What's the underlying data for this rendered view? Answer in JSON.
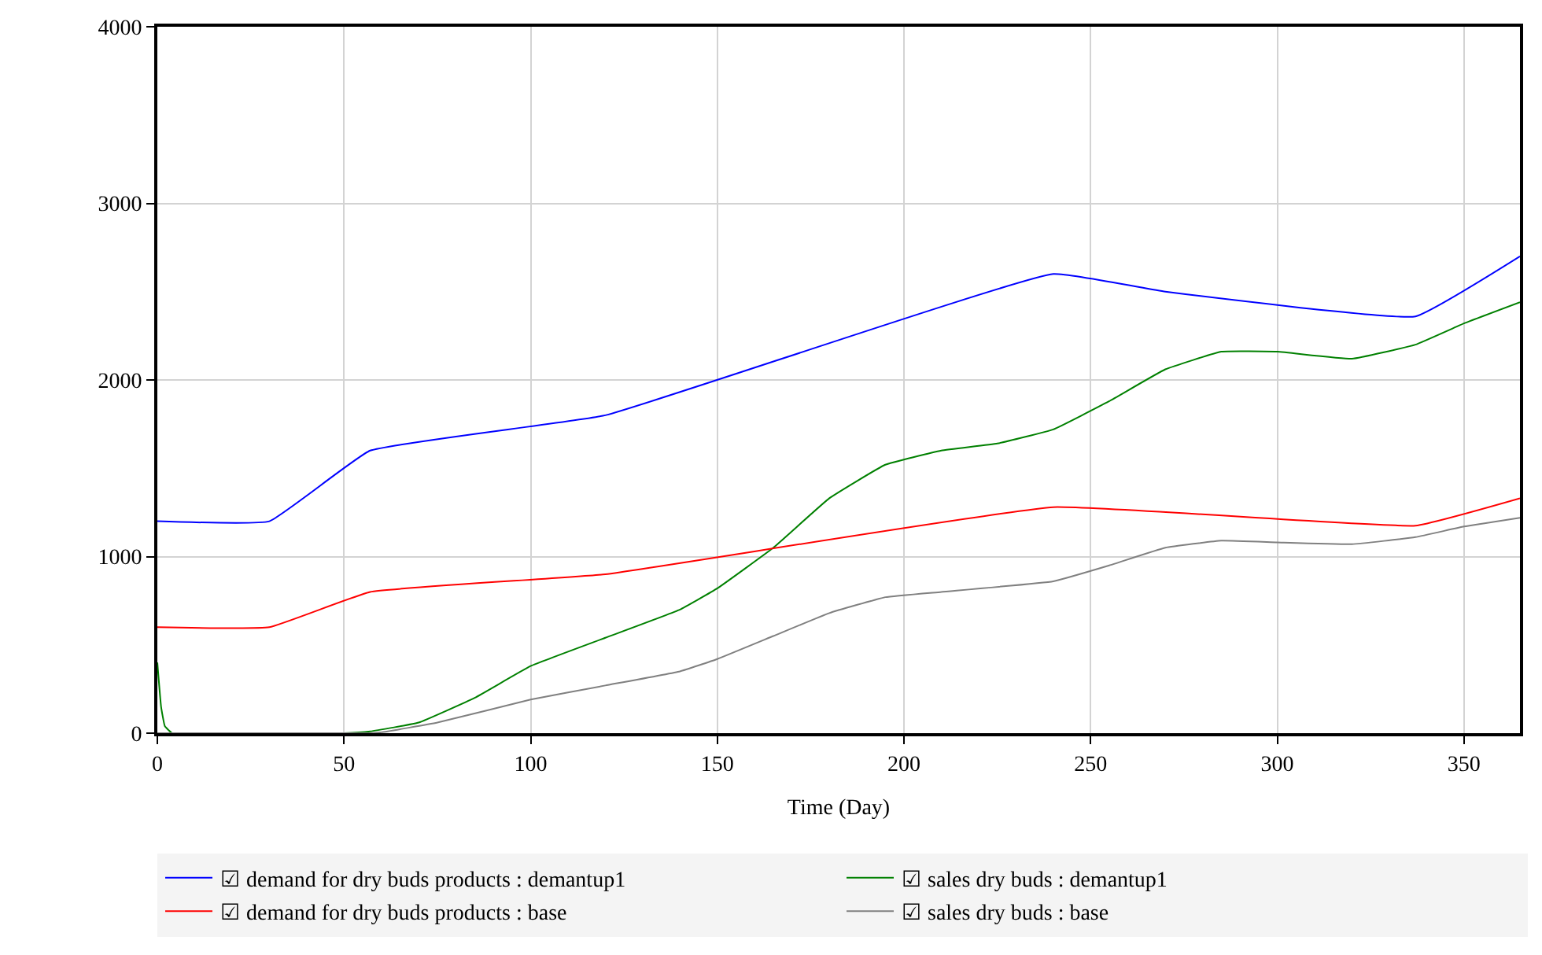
{
  "chart_data": {
    "type": "line",
    "xlabel": "Time (Day)",
    "xlim": [
      0,
      365
    ],
    "xticks": [
      0,
      50,
      100,
      150,
      200,
      250,
      300,
      350
    ],
    "ylim": [
      0,
      4000
    ],
    "yticks": [
      0,
      1000,
      2000,
      3000,
      4000
    ],
    "grid": true,
    "legend": "bottom",
    "marker": "none",
    "line_style": "solid",
    "series": [
      {
        "name": "☑ demand for dry buds products : demantup1",
        "color": "#0000ff",
        "x": [
          0,
          30,
          57,
          120,
          240,
          270,
          337,
          365
        ],
        "values": [
          1200,
          1200,
          1600,
          1800,
          2600,
          2500,
          2360,
          2700
        ]
      },
      {
        "name": "☑ sales dry buds : demantup1",
        "color": "#008000",
        "x": [
          0,
          1,
          2,
          4,
          50,
          57,
          70,
          85,
          100,
          120,
          140,
          150,
          165,
          180,
          195,
          210,
          225,
          240,
          255,
          270,
          285,
          300,
          320,
          337,
          350,
          365
        ],
        "values": [
          400,
          150,
          40,
          0,
          0,
          10,
          60,
          200,
          380,
          540,
          700,
          820,
          1050,
          1330,
          1520,
          1600,
          1640,
          1720,
          1880,
          2060,
          2160,
          2160,
          2120,
          2200,
          2320,
          2440
        ]
      },
      {
        "name": "☑ demand for dry buds products : base",
        "color": "#ff0000",
        "x": [
          0,
          30,
          57,
          120,
          240,
          337,
          365
        ],
        "values": [
          600,
          600,
          800,
          900,
          1280,
          1175,
          1330
        ]
      },
      {
        "name": "☑ sales dry buds : base",
        "color": "#808080",
        "x": [
          0,
          55,
          60,
          75,
          100,
          120,
          140,
          150,
          165,
          180,
          195,
          210,
          240,
          255,
          270,
          285,
          300,
          320,
          337,
          350,
          365
        ],
        "values": [
          0,
          0,
          5,
          60,
          190,
          270,
          350,
          420,
          550,
          680,
          770,
          800,
          860,
          950,
          1050,
          1090,
          1080,
          1070,
          1110,
          1170,
          1220
        ]
      }
    ]
  }
}
